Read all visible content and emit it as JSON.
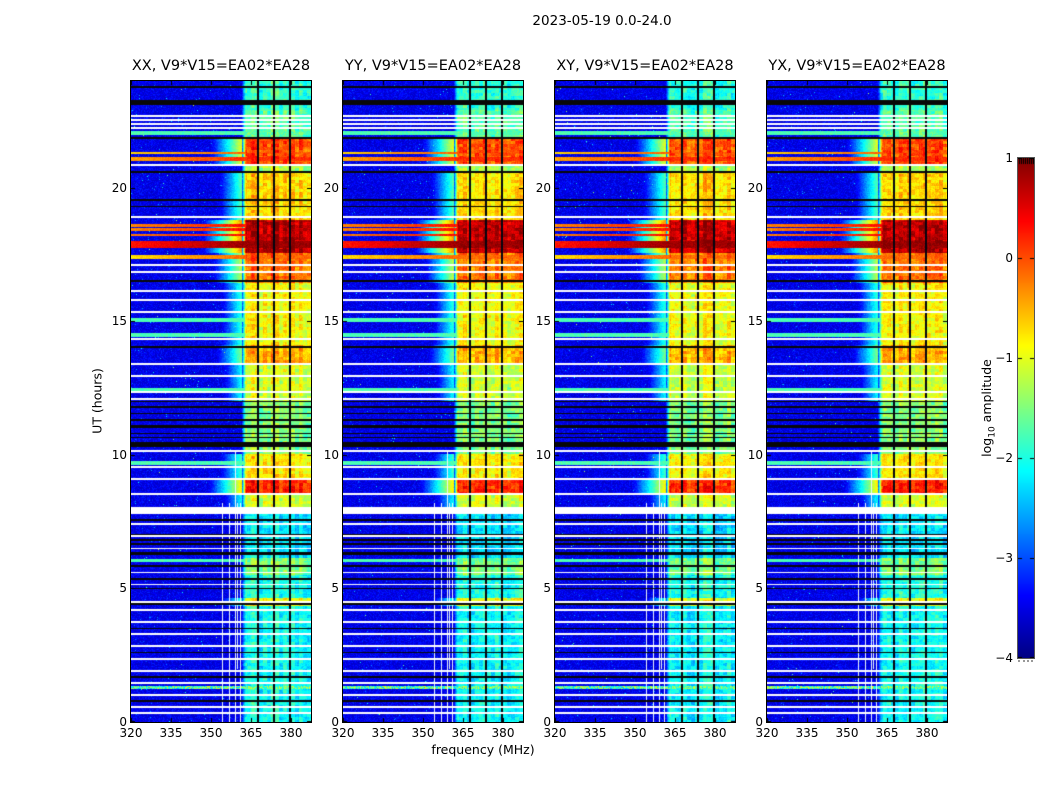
{
  "figure": {
    "title": "2023-05-19 0.0-24.0"
  },
  "chart_data": {
    "type": "heatmap",
    "title": "2023-05-19 0.0-24.0",
    "xlabel": "frequency (MHz)",
    "ylabel": "UT (hours)",
    "colormap": "jet",
    "x_range_mhz": [
      320,
      387.5
    ],
    "x_ticks": [
      320,
      335,
      350,
      365,
      380
    ],
    "x_tick_labels": [
      "320",
      "335",
      "350",
      "365",
      "380"
    ],
    "y_range_hours": [
      0,
      24
    ],
    "y_ticks": [
      0,
      5,
      10,
      15,
      20
    ],
    "y_tick_labels": [
      "0",
      "5",
      "10",
      "15",
      "20"
    ],
    "panels": [
      {
        "id": "xx",
        "pol": "XX",
        "baseline": "V9*V15=EA02*EA28",
        "title": "XX, V9*V15=EA02*EA28"
      },
      {
        "id": "yy",
        "pol": "YY",
        "baseline": "V9*V15=EA02*EA28",
        "title": "YY, V9*V15=EA02*EA28"
      },
      {
        "id": "xy",
        "pol": "XY",
        "baseline": "V9*V15=EA02*EA28",
        "title": "XY, V9*V15=EA02*EA28"
      },
      {
        "id": "yx",
        "pol": "YX",
        "baseline": "V9*V15=EA02*EA28",
        "title": "YX, V9*V15=EA02*EA28"
      }
    ],
    "colorbar": {
      "label": "log10 amplitude",
      "label_prefix": "log",
      "label_sub": "10",
      "label_suffix": " amplitude",
      "range": [
        -4,
        1
      ],
      "ticks": [
        1,
        0,
        -1,
        -2,
        -3,
        -4
      ],
      "tick_labels": [
        "1",
        "0",
        "−1",
        "−2",
        "−3",
        "−4"
      ]
    },
    "features": {
      "background": {
        "level": -3.65,
        "spread": 0.45
      },
      "active_band": {
        "f_start": 361.5,
        "f_end": 387.5,
        "subband_dividers_mhz": [
          367.5,
          373.5,
          379.5
        ]
      },
      "band_segments": [
        [
          0.0,
          4.35,
          -2.1
        ],
        [
          4.35,
          4.65,
          -0.9
        ],
        [
          4.65,
          5.5,
          -2.0
        ],
        [
          5.5,
          6.15,
          -1.5
        ],
        [
          6.15,
          7.8,
          -2.25
        ],
        [
          8.05,
          8.55,
          -1.1
        ],
        [
          8.55,
          9.15,
          0.2
        ],
        [
          9.15,
          10.05,
          -0.8
        ],
        [
          10.05,
          12.0,
          -1.5
        ],
        [
          12.0,
          13.45,
          -1.1
        ],
        [
          13.45,
          14.1,
          -0.5
        ],
        [
          14.1,
          16.45,
          -0.9
        ],
        [
          16.45,
          17.55,
          -0.2
        ],
        [
          17.55,
          18.8,
          0.7
        ],
        [
          18.8,
          20.55,
          -0.7
        ],
        [
          20.55,
          20.9,
          -1.3
        ],
        [
          20.9,
          21.85,
          0.0
        ],
        [
          21.85,
          22.9,
          -1.7
        ],
        [
          22.9,
          24.0,
          -1.9
        ]
      ],
      "fullband_bursts": [
        [
          17.35,
          17.5,
          -0.15
        ],
        [
          17.75,
          18.0,
          0.85
        ],
        [
          18.18,
          18.28,
          0.35
        ],
        [
          18.38,
          18.48,
          0.3
        ],
        [
          18.55,
          18.66,
          0.3
        ],
        [
          21.0,
          21.16,
          0.15
        ],
        [
          21.25,
          21.34,
          -0.1
        ]
      ],
      "white_gap_lines_ut": [
        0.35,
        0.55,
        1.0,
        1.45,
        1.9,
        2.35,
        2.85,
        3.3,
        3.75,
        4.2,
        4.5,
        5.15,
        5.6,
        6.5,
        6.95,
        7.4,
        8.55,
        9.1,
        9.55,
        10.15,
        12.1,
        12.35,
        12.95,
        13.4,
        14.35,
        15.35,
        15.8,
        16.15,
        16.85,
        17.1,
        18.9,
        20.85,
        22.25,
        22.4,
        22.55,
        22.7
      ],
      "white_gap_bands_ut": [
        [
          7.8,
          8.05
        ]
      ],
      "flagged_black_lines_ut": [
        0.8,
        1.7,
        2.6,
        3.5,
        4.42,
        5.0,
        5.35,
        5.85,
        6.65,
        6.8,
        7.0,
        7.55,
        10.65,
        10.8,
        11.05,
        11.3,
        11.55,
        11.8,
        12.0,
        14.05,
        16.5,
        19.3,
        19.55,
        20.6,
        21.85,
        23.78
      ],
      "flagged_black_bands_ut": [
        [
          6.25,
          6.35
        ],
        [
          10.28,
          10.5
        ],
        [
          11.0,
          11.12
        ],
        [
          23.1,
          23.3
        ]
      ],
      "enhanced_cyan_lines_ut": [
        6.05,
        9.7,
        12.45,
        14.5,
        15.05,
        22.05
      ],
      "speckled_orange_lines_ut": [
        1.3
      ],
      "narrowband_vertical_lines": [
        {
          "f": 354.3,
          "t0": 0.0,
          "t1": 8.2
        },
        {
          "f": 357.0,
          "t0": 0.0,
          "t1": 8.2
        },
        {
          "f": 359.2,
          "t0": 0.0,
          "t1": 10.2
        },
        {
          "f": 360.1,
          "t0": 2.0,
          "t1": 8.2
        },
        {
          "f": 361.0,
          "t0": 0.0,
          "t1": 8.2
        }
      ]
    }
  }
}
